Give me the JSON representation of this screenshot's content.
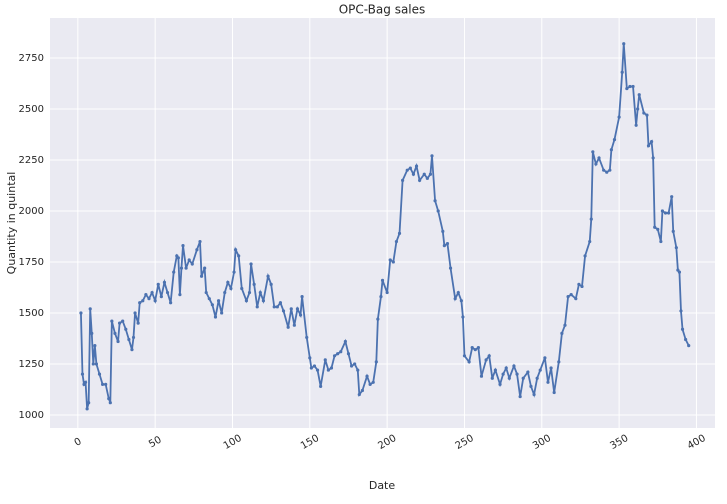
{
  "chart_data": {
    "type": "line",
    "title": "OPC-Bag sales",
    "x_label": "Date",
    "y_label": "Quantity in quintal",
    "x": [
      2,
      3,
      4,
      5,
      6,
      7,
      8,
      9,
      10,
      11,
      12,
      14,
      16,
      18,
      20,
      21,
      22,
      24,
      26,
      27,
      29,
      31,
      33,
      35,
      36,
      37,
      39,
      40,
      42,
      44,
      46,
      48,
      50,
      52,
      54,
      56,
      58,
      60,
      62,
      64,
      65,
      66,
      67,
      68,
      70,
      72,
      74,
      77,
      79,
      80,
      82,
      83,
      85,
      87,
      89,
      91,
      93,
      95,
      97,
      99,
      101,
      102,
      104,
      106,
      109,
      111,
      112,
      114,
      116,
      118,
      120,
      123,
      125,
      127,
      129,
      131,
      133,
      136,
      138,
      140,
      142,
      144,
      145,
      148,
      150,
      151,
      153,
      155,
      157,
      160,
      162,
      164,
      166,
      168,
      170,
      173,
      175,
      177,
      179,
      181,
      182,
      184,
      187,
      189,
      191,
      193,
      194,
      196,
      197,
      200,
      202,
      204,
      206,
      208,
      210,
      213,
      215,
      217,
      219,
      221,
      224,
      226,
      228,
      229,
      231,
      233,
      236,
      237,
      239,
      241,
      244,
      246,
      248,
      249,
      250,
      253,
      255,
      257,
      259,
      261,
      264,
      266,
      268,
      270,
      273,
      275,
      277,
      279,
      282,
      284,
      286,
      288,
      291,
      293,
      295,
      297,
      299,
      302,
      304,
      306,
      308,
      311,
      313,
      315,
      317,
      319,
      322,
      324,
      326,
      328,
      331,
      332,
      333,
      335,
      337,
      340,
      342,
      344,
      345,
      347,
      350,
      352,
      353,
      355,
      357,
      359,
      361,
      362,
      363,
      366,
      368,
      369,
      371,
      372,
      373,
      375,
      377,
      378,
      380,
      382,
      384,
      385,
      387,
      388,
      389,
      390,
      391,
      393,
      395
    ],
    "series": [
      {
        "name": "sales",
        "color": "#4c72b0",
        "values": [
          1500,
          1200,
          1150,
          1160,
          1030,
          1060,
          1520,
          1400,
          1250,
          1340,
          1250,
          1200,
          1150,
          1150,
          1080,
          1060,
          1460,
          1400,
          1360,
          1450,
          1460,
          1420,
          1370,
          1320,
          1380,
          1500,
          1450,
          1550,
          1560,
          1590,
          1570,
          1600,
          1560,
          1640,
          1580,
          1650,
          1600,
          1550,
          1700,
          1780,
          1770,
          1590,
          1720,
          1830,
          1720,
          1760,
          1740,
          1810,
          1850,
          1680,
          1720,
          1600,
          1570,
          1540,
          1480,
          1560,
          1500,
          1600,
          1650,
          1620,
          1700,
          1810,
          1780,
          1620,
          1560,
          1600,
          1740,
          1640,
          1530,
          1600,
          1560,
          1680,
          1640,
          1530,
          1530,
          1550,
          1510,
          1430,
          1520,
          1440,
          1520,
          1490,
          1580,
          1380,
          1280,
          1230,
          1240,
          1220,
          1140,
          1270,
          1220,
          1230,
          1290,
          1300,
          1310,
          1360,
          1300,
          1240,
          1250,
          1220,
          1100,
          1120,
          1190,
          1150,
          1160,
          1260,
          1470,
          1580,
          1660,
          1600,
          1760,
          1750,
          1850,
          1890,
          2150,
          2200,
          2210,
          2180,
          2220,
          2150,
          2180,
          2160,
          2180,
          2270,
          2050,
          2000,
          1900,
          1830,
          1840,
          1720,
          1570,
          1600,
          1560,
          1480,
          1290,
          1260,
          1330,
          1320,
          1330,
          1190,
          1270,
          1290,
          1180,
          1220,
          1150,
          1200,
          1230,
          1180,
          1240,
          1200,
          1090,
          1180,
          1210,
          1140,
          1100,
          1180,
          1220,
          1280,
          1160,
          1230,
          1110,
          1260,
          1400,
          1440,
          1580,
          1590,
          1570,
          1640,
          1630,
          1780,
          1850,
          1960,
          2290,
          2230,
          2260,
          2200,
          2190,
          2200,
          2300,
          2350,
          2460,
          2680,
          2820,
          2600,
          2610,
          2610,
          2420,
          2500,
          2570,
          2480,
          2470,
          2320,
          2340,
          2260,
          1920,
          1910,
          1850,
          2000,
          1990,
          1990,
          2070,
          1900,
          1820,
          1710,
          1700,
          1510,
          1420,
          1370,
          1340
        ]
      }
    ],
    "xlim": [
      -18,
      412
    ],
    "ylim": [
      936,
      2946
    ],
    "xticks": [
      0,
      50,
      100,
      150,
      200,
      250,
      300,
      350,
      400
    ],
    "yticks": [
      1000,
      1250,
      1500,
      1750,
      2000,
      2250,
      2500,
      2750
    ],
    "grid": true
  }
}
